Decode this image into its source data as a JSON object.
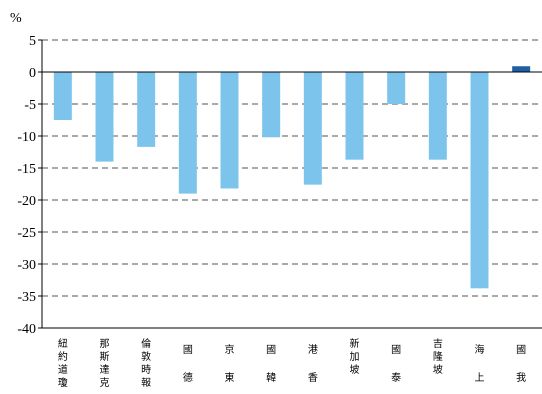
{
  "chart_data": {
    "type": "bar",
    "unit_label": "%",
    "ylim": [
      -40,
      5
    ],
    "yticks": [
      5,
      0,
      -5,
      -10,
      -15,
      -20,
      -25,
      -30,
      -35,
      -40
    ],
    "grid": true,
    "categories": [
      [
        "紐約道瓊"
      ],
      [
        "那斯達克"
      ],
      [
        "倫敦時報"
      ],
      [
        "德",
        "國"
      ],
      [
        "東",
        "京"
      ],
      [
        "韓",
        "國"
      ],
      [
        "香",
        "港"
      ],
      [
        "新加坡"
      ],
      [
        "泰",
        "國"
      ],
      [
        "吉隆坡"
      ],
      [
        "上",
        "海"
      ],
      [
        "我",
        "國"
      ]
    ],
    "values": [
      -7.5,
      -14,
      -11.7,
      -19,
      -18.2,
      -10.2,
      -17.6,
      -13.7,
      -5,
      -13.7,
      -33.8,
      0.9
    ],
    "colors": {
      "bar": "#7cc4ec",
      "highlight": "#1f5fa8",
      "grid": "#555555",
      "axis": "#000000"
    },
    "highlight_index": 11
  }
}
